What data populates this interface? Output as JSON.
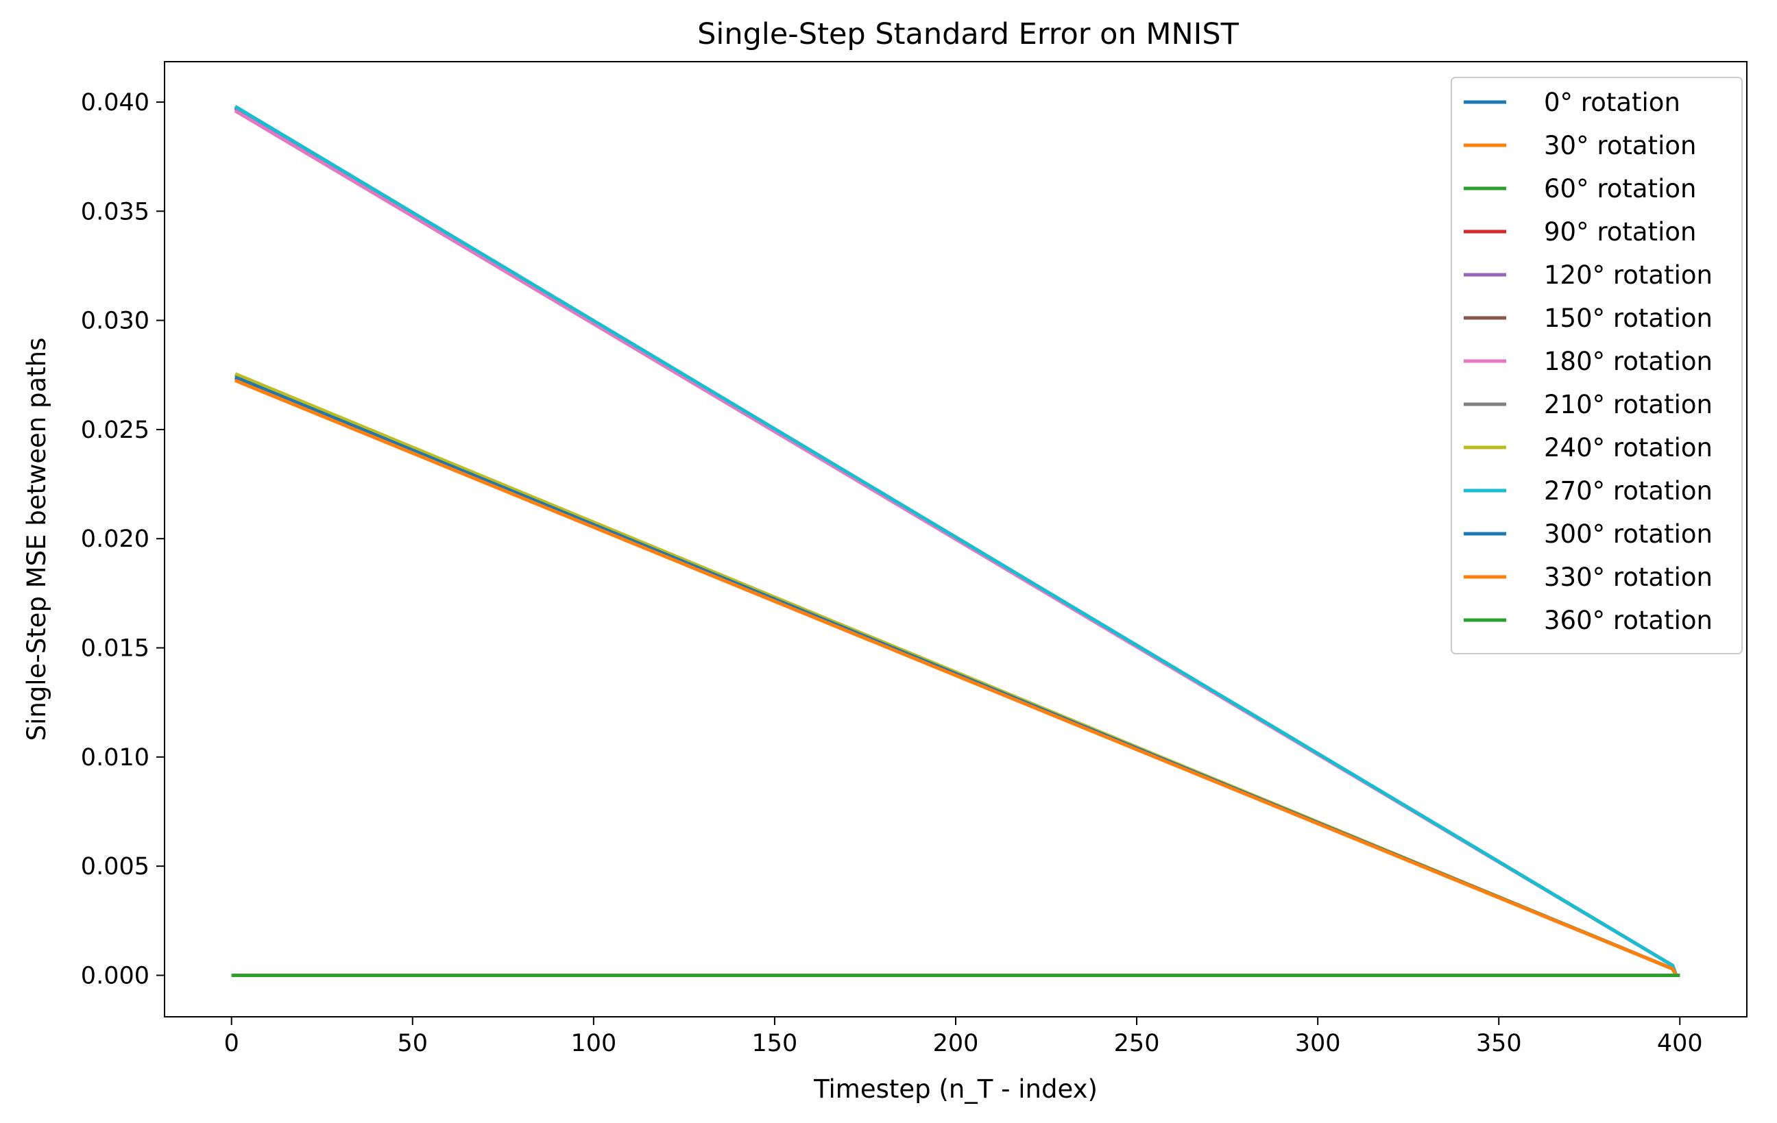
{
  "chart_data": {
    "type": "line",
    "title": "Single-Step Standard Error on MNIST",
    "xlabel": "Timestep (n_T - index)",
    "ylabel": "Single-Step MSE between paths",
    "xlim": [
      -18.5,
      418.5
    ],
    "ylim": [
      -0.0019,
      0.04185
    ],
    "xticks": [
      0,
      50,
      100,
      150,
      200,
      250,
      300,
      350,
      400
    ],
    "yticks": [
      0.0,
      0.005,
      0.01,
      0.015,
      0.02,
      0.025,
      0.03,
      0.035,
      0.04
    ],
    "ytick_labels": [
      "0.000",
      "0.005",
      "0.010",
      "0.015",
      "0.020",
      "0.025",
      "0.030",
      "0.035",
      "0.040"
    ],
    "legend_position": "top-right",
    "grid": false,
    "series": [
      {
        "name": "0° rotation",
        "color": "#1f77b4",
        "x": [
          0,
          399,
          400
        ],
        "y": [
          0.0,
          0.0,
          0.0
        ]
      },
      {
        "name": "30° rotation",
        "color": "#ff7f0e",
        "x": [
          1,
          398,
          399
        ],
        "y": [
          0.02725,
          0.0003,
          0.0
        ]
      },
      {
        "name": "60° rotation",
        "color": "#2ca02c",
        "x": [
          1,
          398,
          399
        ],
        "y": [
          0.0275,
          0.0003,
          0.0
        ]
      },
      {
        "name": "90° rotation",
        "color": "#d62728",
        "x": [
          1,
          398,
          399
        ],
        "y": [
          0.03975,
          0.00045,
          0.0
        ]
      },
      {
        "name": "120° rotation",
        "color": "#9467bd",
        "x": [
          1,
          398,
          399
        ],
        "y": [
          0.0397,
          0.00045,
          0.0
        ]
      },
      {
        "name": "150° rotation",
        "color": "#8c564b",
        "x": [
          1,
          398,
          399
        ],
        "y": [
          0.02735,
          0.0003,
          0.0
        ]
      },
      {
        "name": "180° rotation",
        "color": "#e377c2",
        "x": [
          1,
          398,
          399
        ],
        "y": [
          0.0396,
          0.00045,
          0.0
        ]
      },
      {
        "name": "210° rotation",
        "color": "#7f7f7f",
        "x": [
          1,
          398,
          399
        ],
        "y": [
          0.0274,
          0.0003,
          0.0
        ]
      },
      {
        "name": "240° rotation",
        "color": "#bcbd22",
        "x": [
          1,
          398,
          399
        ],
        "y": [
          0.02755,
          0.0003,
          0.0
        ]
      },
      {
        "name": "270° rotation",
        "color": "#17becf",
        "x": [
          1,
          398,
          399
        ],
        "y": [
          0.0398,
          0.00045,
          0.0
        ]
      },
      {
        "name": "300° rotation",
        "color": "#1f77b4",
        "x": [
          1,
          398,
          399
        ],
        "y": [
          0.0274,
          0.0003,
          0.0
        ]
      },
      {
        "name": "330° rotation",
        "color": "#ff7f0e",
        "x": [
          1,
          398,
          399
        ],
        "y": [
          0.02725,
          0.0003,
          0.0
        ]
      },
      {
        "name": "360° rotation",
        "color": "#2ca02c",
        "x": [
          0,
          399,
          400
        ],
        "y": [
          0.0,
          0.0,
          0.0
        ]
      }
    ]
  }
}
